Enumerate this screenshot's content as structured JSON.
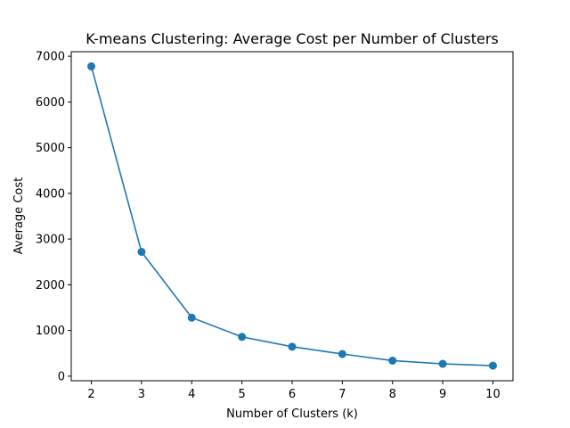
{
  "chart_data": {
    "type": "line",
    "title": "K-means Clustering: Average Cost per Number of Clusters",
    "xlabel": "Number of Clusters (k)",
    "ylabel": "Average Cost",
    "x": [
      2,
      3,
      4,
      5,
      6,
      7,
      8,
      9,
      10
    ],
    "series": [
      {
        "values": [
          6780,
          2720,
          1280,
          860,
          645,
          485,
          340,
          270,
          230
        ]
      }
    ],
    "xlim": [
      1.6,
      10.4
    ],
    "ylim": [
      -100,
      7100
    ],
    "xticks": [
      "2",
      "3",
      "4",
      "5",
      "6",
      "7",
      "8",
      "9",
      "10"
    ],
    "yticks": [
      "0",
      "1000",
      "2000",
      "3000",
      "4000",
      "5000",
      "6000",
      "7000"
    ],
    "marker": "circle",
    "grid": false,
    "line_color": "#1f77b4"
  }
}
